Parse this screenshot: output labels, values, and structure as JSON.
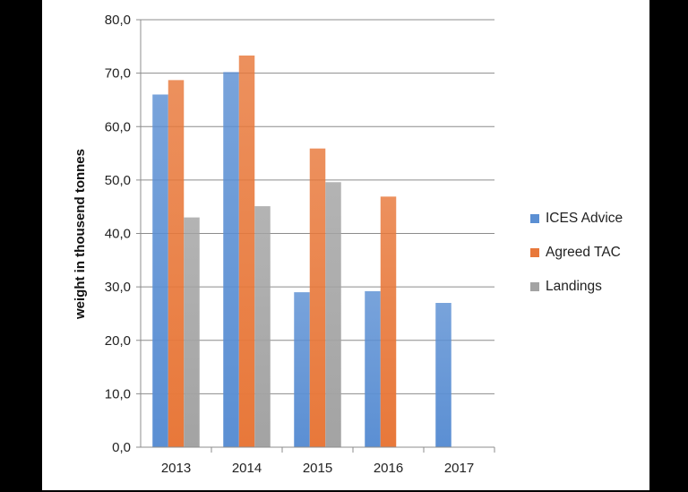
{
  "chart_data": {
    "type": "bar",
    "title": "",
    "xlabel": "",
    "ylabel": "weight in thousend tonnes",
    "categories": [
      "2013",
      "2014",
      "2015",
      "2016",
      "2017"
    ],
    "series": [
      {
        "name": "ICES Advice",
        "color": "#5b8fd3",
        "values": [
          66.0,
          70.2,
          29.0,
          29.2,
          27.0
        ]
      },
      {
        "name": "Agreed TAC",
        "color": "#e8783a",
        "values": [
          68.7,
          73.3,
          55.9,
          46.9,
          null
        ]
      },
      {
        "name": "Landings",
        "color": "#a3a3a3",
        "values": [
          43.0,
          45.1,
          49.6,
          null,
          null
        ]
      }
    ],
    "ylim": [
      0,
      80
    ],
    "yticks": [
      "0,0",
      "10,0",
      "20,0",
      "30,0",
      "40,0",
      "50,0",
      "60,0",
      "70,0",
      "80,0"
    ],
    "grid": true,
    "legend": "right",
    "background": "#000000",
    "plot_background": "#ffffff"
  }
}
